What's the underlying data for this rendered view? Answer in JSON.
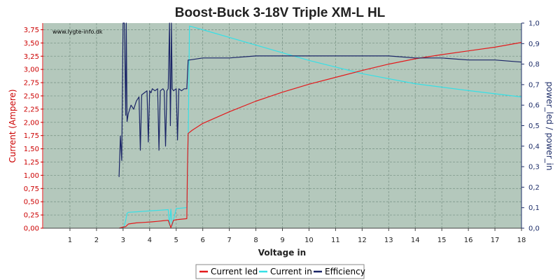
{
  "chart_data": {
    "type": "line",
    "title": "Boost-Buck 3-18V Triple XM-L HL",
    "watermark": "www.lygte-info.dk",
    "xlabel": "Voltage in",
    "ylabel_left": "Current (Ampere)",
    "ylabel_right": "power_led / power_in",
    "xlim": [
      0,
      18
    ],
    "ylim_left": [
      0,
      3.875
    ],
    "ylim_right": [
      0,
      1.0
    ],
    "x_ticks": [
      "1",
      "2",
      "3",
      "4",
      "5",
      "6",
      "7",
      "8",
      "9",
      "10",
      "11",
      "12",
      "13",
      "14",
      "15",
      "16",
      "17",
      "18"
    ],
    "y_ticks_left": [
      "0,00",
      "0,25",
      "0,50",
      "0,75",
      "1,00",
      "1,25",
      "1,50",
      "1,75",
      "2,00",
      "2,25",
      "2,50",
      "2,75",
      "3,00",
      "3,25",
      "3,50",
      "3,75"
    ],
    "y_ticks_right": [
      "0,0",
      "0,1",
      "0,2",
      "0,3",
      "0,4",
      "0,5",
      "0,6",
      "0,7",
      "0,8",
      "0,9",
      "1,0"
    ],
    "grid": true,
    "legend_position": "bottom",
    "colors": {
      "plot_bg": "#b4c8bc",
      "grid": "#7e978a",
      "left_axis": "#cc0000",
      "right_axis": "#1f2f6a",
      "current_led": "#e31a1c",
      "current_in": "#36e0e6",
      "efficiency": "#1a2466"
    },
    "series": [
      {
        "name": "Current led",
        "axis": "left",
        "x": [
          2.85,
          3.0,
          3.1,
          3.2,
          3.5,
          3.8,
          4.1,
          4.3,
          4.5,
          4.7,
          4.8,
          4.9,
          5.0,
          5.2,
          5.4,
          5.42,
          5.45,
          5.6,
          6,
          7,
          8,
          9,
          10,
          11,
          12,
          13,
          14,
          15,
          16,
          17,
          18
        ],
        "y": [
          0.0,
          0.02,
          0.03,
          0.08,
          0.1,
          0.11,
          0.12,
          0.13,
          0.14,
          0.15,
          0.01,
          0.15,
          0.16,
          0.17,
          0.18,
          1.05,
          1.79,
          1.85,
          1.98,
          2.2,
          2.4,
          2.57,
          2.72,
          2.85,
          2.98,
          3.1,
          3.2,
          3.28,
          3.35,
          3.42,
          3.51
        ]
      },
      {
        "name": "Current in",
        "axis": "left",
        "x": [
          2.85,
          3.0,
          3.05,
          3.1,
          3.15,
          3.2,
          3.5,
          3.8,
          4.1,
          4.4,
          4.7,
          4.75,
          4.8,
          4.85,
          5.0,
          5.2,
          5.4,
          5.45,
          5.5,
          6,
          8,
          10,
          12,
          14,
          16,
          18
        ],
        "y": [
          0.0,
          0.0,
          0.05,
          0.15,
          0.28,
          0.3,
          0.31,
          0.32,
          0.33,
          0.34,
          0.35,
          0.05,
          0.36,
          0.05,
          0.37,
          0.38,
          0.39,
          1.6,
          3.82,
          3.75,
          3.46,
          3.17,
          2.92,
          2.73,
          2.6,
          2.48
        ]
      },
      {
        "name": "Efficiency",
        "axis": "right",
        "x": [
          2.85,
          2.9,
          2.95,
          3.0,
          3.02,
          3.05,
          3.1,
          3.12,
          3.15,
          3.2,
          3.3,
          3.4,
          3.5,
          3.6,
          3.65,
          3.7,
          3.8,
          3.9,
          3.95,
          4.0,
          4.05,
          4.1,
          4.2,
          4.3,
          4.35,
          4.4,
          4.5,
          4.55,
          4.6,
          4.65,
          4.7,
          4.75,
          4.78,
          4.8,
          4.82,
          4.85,
          4.9,
          5.0,
          5.05,
          5.1,
          5.2,
          5.3,
          5.4,
          5.45,
          5.5,
          6,
          7,
          8,
          9,
          10,
          11,
          12,
          13,
          14,
          15,
          16,
          17,
          18
        ],
        "y": [
          0.25,
          0.45,
          0.33,
          1.0,
          1.0,
          1.0,
          0.55,
          1.0,
          0.52,
          0.56,
          0.6,
          0.58,
          0.62,
          0.64,
          0.38,
          0.65,
          0.66,
          0.67,
          0.42,
          0.67,
          0.66,
          0.68,
          0.67,
          0.68,
          0.38,
          0.67,
          0.68,
          0.67,
          0.4,
          0.67,
          0.68,
          1.0,
          0.5,
          0.68,
          1.0,
          0.68,
          0.67,
          0.68,
          0.43,
          0.68,
          0.67,
          0.68,
          0.68,
          0.82,
          0.82,
          0.83,
          0.83,
          0.84,
          0.84,
          0.84,
          0.84,
          0.84,
          0.84,
          0.83,
          0.83,
          0.82,
          0.82,
          0.81
        ]
      }
    ]
  }
}
